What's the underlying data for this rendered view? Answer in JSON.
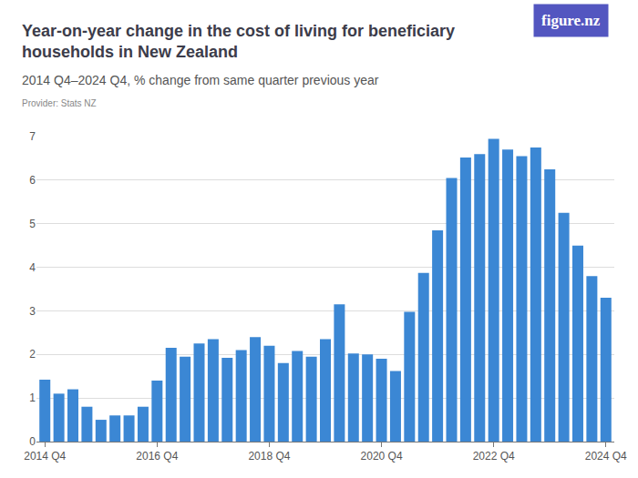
{
  "chart_data": {
    "type": "bar",
    "title": "Year-on-year change in the cost of living for beneficiary households in New Zealand",
    "subtitle": "2014 Q4–2024 Q4, % change from same quarter previous year",
    "provider": "Provider: Stats NZ",
    "logo": "figure.nz",
    "categories": [
      "2014 Q4",
      null,
      null,
      null,
      null,
      null,
      null,
      null,
      "2016 Q4",
      null,
      null,
      null,
      null,
      null,
      null,
      null,
      "2018 Q4",
      null,
      null,
      null,
      null,
      null,
      null,
      null,
      "2020 Q4",
      null,
      null,
      null,
      null,
      null,
      null,
      null,
      "2022 Q4",
      null,
      null,
      null,
      null,
      null,
      null,
      null,
      "2024 Q4"
    ],
    "values": [
      1.42,
      1.1,
      1.2,
      0.8,
      0.5,
      0.6,
      0.6,
      0.8,
      1.4,
      2.15,
      1.95,
      2.25,
      2.35,
      1.92,
      2.1,
      2.4,
      2.2,
      1.8,
      2.08,
      1.95,
      2.35,
      3.15,
      2.02,
      2.0,
      1.9,
      1.62,
      2.98,
      3.87,
      4.85,
      6.05,
      6.52,
      6.6,
      6.95,
      6.7,
      6.55,
      6.75,
      6.25,
      5.25,
      4.5,
      3.8,
      3.3
    ],
    "color": "#3b87d4",
    "ylim": [
      0,
      7
    ],
    "yticks": [
      0,
      1,
      2,
      3,
      4,
      5,
      6,
      7
    ],
    "grid": true
  }
}
